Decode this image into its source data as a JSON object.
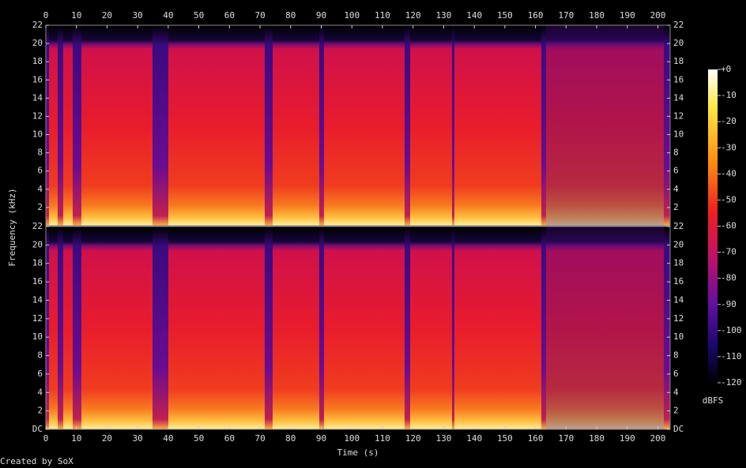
{
  "chart_data": {
    "type": "spectrogram",
    "x_label": "Time (s)",
    "y_label": "Frequency (kHz)",
    "xlim": [
      0,
      204
    ],
    "xticks": [
      0,
      10,
      20,
      30,
      40,
      50,
      60,
      70,
      80,
      90,
      100,
      110,
      120,
      130,
      140,
      150,
      160,
      170,
      180,
      190,
      200
    ],
    "panels": [
      {
        "ylim": [
          0,
          22
        ],
        "yticks": [
          2,
          4,
          6,
          8,
          10,
          12,
          14,
          16,
          18,
          20,
          22
        ]
      },
      {
        "ylim": [
          0,
          22
        ],
        "yticks": [
          {
            "value": 0,
            "label": "DC"
          },
          2,
          4,
          6,
          8,
          10,
          12,
          14,
          16,
          18,
          20,
          22
        ]
      }
    ],
    "colorbar": {
      "label": "dBFS",
      "lim": [
        -120,
        0
      ],
      "ticks": [
        {
          "value": 0,
          "label": "+0"
        },
        -10,
        -20,
        -30,
        -40,
        -50,
        -60,
        -70,
        -80,
        -90,
        -100,
        -110,
        -120
      ]
    },
    "footer": "Created by SoX"
  }
}
